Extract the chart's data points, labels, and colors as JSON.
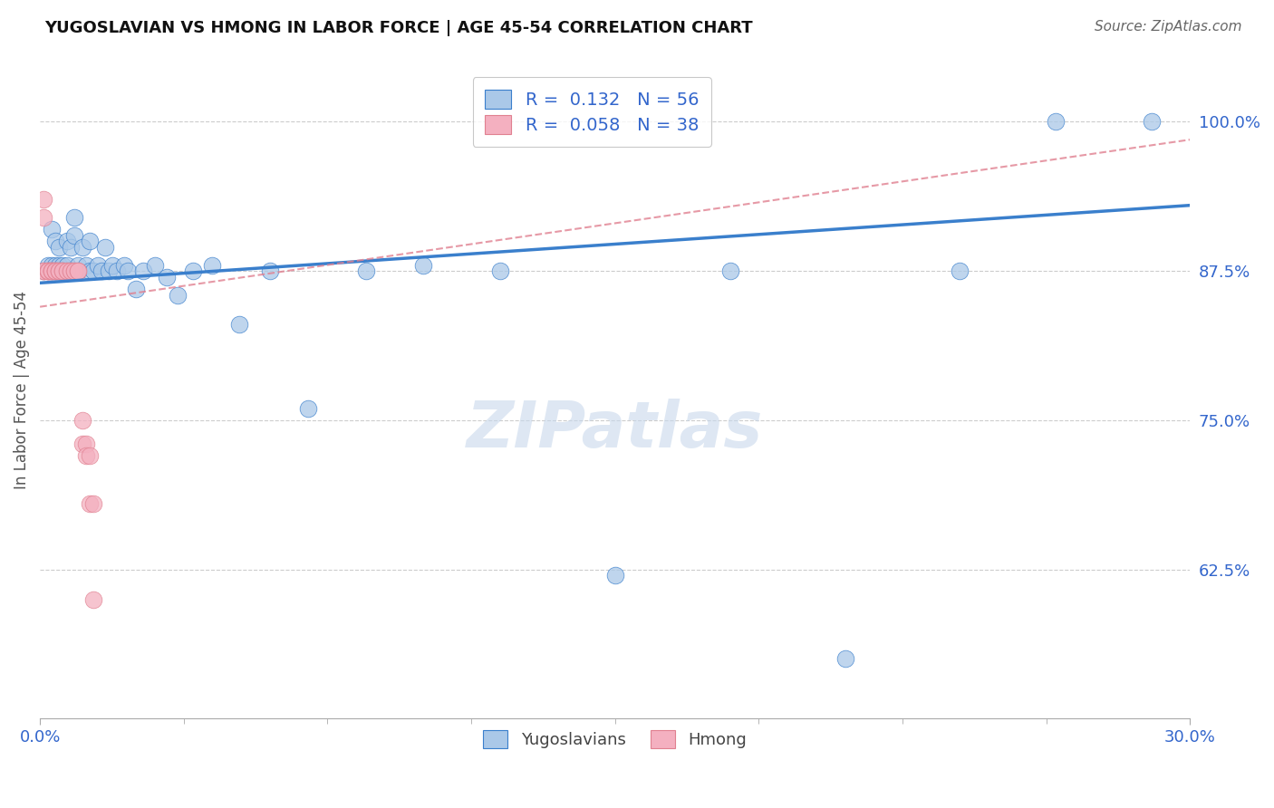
{
  "title": "YUGOSLAVIAN VS HMONG IN LABOR FORCE | AGE 45-54 CORRELATION CHART",
  "source": "Source: ZipAtlas.com",
  "ylabel": "In Labor Force | Age 45-54",
  "ytick_labels": [
    "100.0%",
    "87.5%",
    "75.0%",
    "62.5%"
  ],
  "ytick_values": [
    1.0,
    0.875,
    0.75,
    0.625
  ],
  "xmin": 0.0,
  "xmax": 0.3,
  "ymin": 0.5,
  "ymax": 1.05,
  "yugo_R": 0.132,
  "yugo_N": 56,
  "hmong_R": 0.058,
  "hmong_N": 38,
  "blue_color": "#aac8e8",
  "pink_color": "#f4b0c0",
  "blue_line_color": "#3a7fcc",
  "pink_line_color": "#e08090",
  "legend_label_yugo": "Yugoslavians",
  "legend_label_hmong": "Hmong",
  "watermark_text": "ZIPatlas",
  "yugo_x": [
    0.001,
    0.002,
    0.002,
    0.003,
    0.003,
    0.003,
    0.004,
    0.004,
    0.004,
    0.005,
    0.005,
    0.005,
    0.006,
    0.006,
    0.006,
    0.007,
    0.007,
    0.007,
    0.008,
    0.008,
    0.009,
    0.009,
    0.01,
    0.01,
    0.011,
    0.012,
    0.013,
    0.013,
    0.014,
    0.015,
    0.016,
    0.017,
    0.018,
    0.019,
    0.02,
    0.022,
    0.023,
    0.025,
    0.027,
    0.03,
    0.033,
    0.036,
    0.04,
    0.045,
    0.052,
    0.06,
    0.07,
    0.085,
    0.1,
    0.12,
    0.15,
    0.18,
    0.21,
    0.24,
    0.265,
    0.29
  ],
  "yugo_y": [
    0.875,
    0.875,
    0.88,
    0.875,
    0.88,
    0.91,
    0.875,
    0.88,
    0.9,
    0.875,
    0.88,
    0.895,
    0.875,
    0.88,
    0.875,
    0.875,
    0.88,
    0.9,
    0.875,
    0.895,
    0.905,
    0.92,
    0.875,
    0.88,
    0.895,
    0.88,
    0.875,
    0.9,
    0.875,
    0.88,
    0.875,
    0.895,
    0.875,
    0.88,
    0.875,
    0.88,
    0.875,
    0.86,
    0.875,
    0.88,
    0.87,
    0.855,
    0.875,
    0.88,
    0.83,
    0.875,
    0.76,
    0.875,
    0.88,
    0.875,
    0.62,
    0.875,
    0.55,
    0.875,
    1.0,
    1.0
  ],
  "hmong_x": [
    0.001,
    0.001,
    0.001,
    0.001,
    0.002,
    0.002,
    0.002,
    0.002,
    0.003,
    0.003,
    0.003,
    0.003,
    0.004,
    0.004,
    0.004,
    0.004,
    0.005,
    0.005,
    0.005,
    0.006,
    0.006,
    0.006,
    0.007,
    0.007,
    0.008,
    0.008,
    0.009,
    0.009,
    0.01,
    0.01,
    0.011,
    0.011,
    0.012,
    0.012,
    0.013,
    0.013,
    0.014,
    0.014
  ],
  "hmong_y": [
    0.935,
    0.92,
    0.875,
    0.875,
    0.875,
    0.875,
    0.875,
    0.875,
    0.875,
    0.875,
    0.875,
    0.875,
    0.875,
    0.875,
    0.875,
    0.875,
    0.875,
    0.875,
    0.875,
    0.875,
    0.875,
    0.875,
    0.875,
    0.875,
    0.875,
    0.875,
    0.875,
    0.875,
    0.875,
    0.875,
    0.75,
    0.73,
    0.73,
    0.72,
    0.72,
    0.68,
    0.6,
    0.68
  ],
  "yugo_trend_x0": 0.0,
  "yugo_trend_x1": 0.3,
  "yugo_trend_y0": 0.865,
  "yugo_trend_y1": 0.93,
  "hmong_trend_x0": 0.0,
  "hmong_trend_x1": 0.3,
  "hmong_trend_y0": 0.845,
  "hmong_trend_y1": 0.985
}
